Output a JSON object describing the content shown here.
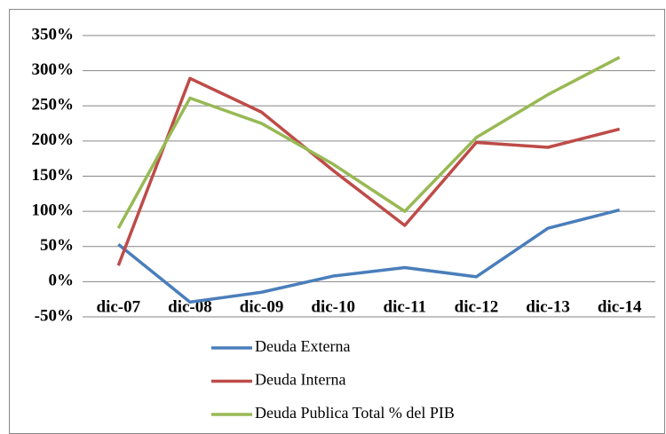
{
  "chart_data": {
    "type": "line",
    "categories": [
      "dic-07",
      "dic-08",
      "dic-09",
      "dic-10",
      "dic-11",
      "dic-12",
      "dic-13",
      "dic-14"
    ],
    "series": [
      {
        "name": "Deuda Externa",
        "color": "#4a7ebb",
        "values": [
          53,
          -29,
          -15,
          8,
          20,
          7,
          76,
          102
        ]
      },
      {
        "name": "Deuda Interna",
        "color": "#be4b48",
        "values": [
          23,
          289,
          241,
          158,
          80,
          198,
          191,
          217
        ]
      },
      {
        "name": "Deuda Publica Total % del PIB",
        "color": "#98b954",
        "values": [
          76,
          261,
          225,
          167,
          100,
          205,
          266,
          319
        ]
      }
    ],
    "ylim": [
      -50,
      350
    ],
    "yticks": [
      {
        "value": -50,
        "label": "-50%"
      },
      {
        "value": 0,
        "label": "0%"
      },
      {
        "value": 50,
        "label": "50%"
      },
      {
        "value": 100,
        "label": "100%"
      },
      {
        "value": 150,
        "label": "150%"
      },
      {
        "value": 200,
        "label": "200%"
      },
      {
        "value": 250,
        "label": "250%"
      },
      {
        "value": 300,
        "label": "300%"
      },
      {
        "value": 350,
        "label": "350%"
      }
    ],
    "grid": true,
    "legend": "bottom"
  }
}
